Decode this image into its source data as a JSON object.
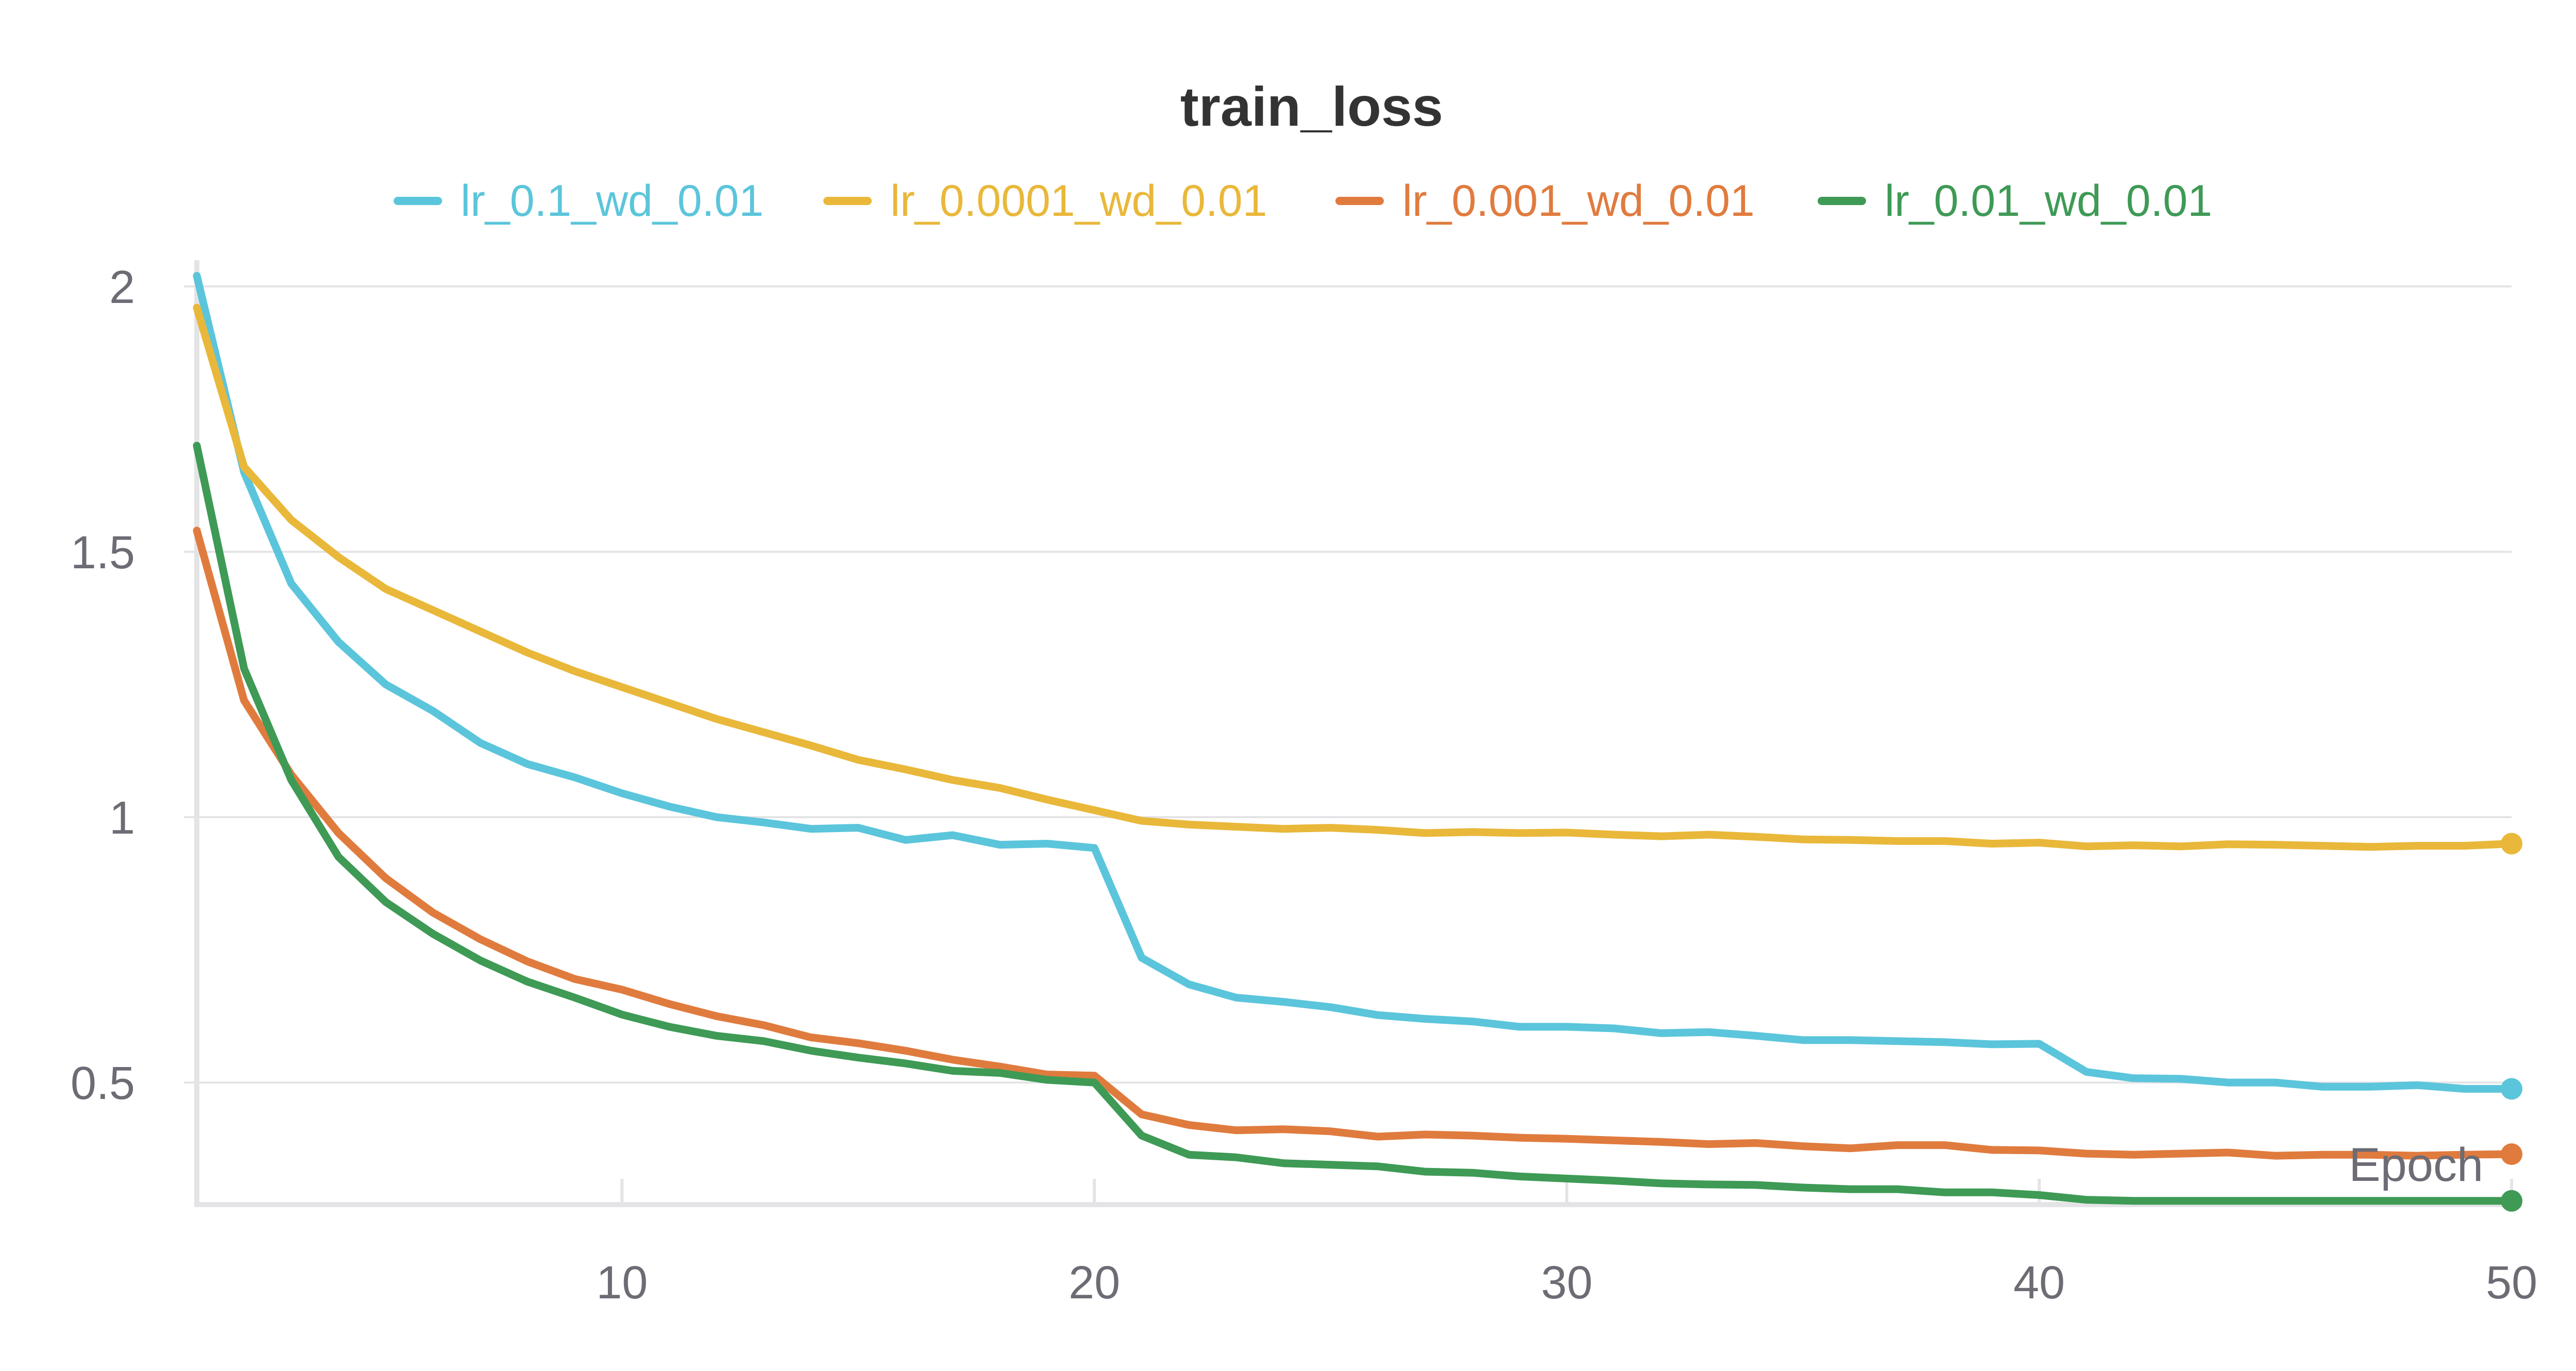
{
  "chart_data": {
    "type": "line",
    "title": "train_loss",
    "xlabel": "Epoch",
    "ylabel": "",
    "xlim": [
      1,
      50
    ],
    "ylim": [
      0.27,
      2.03
    ],
    "x_ticks": [
      10,
      20,
      30,
      40,
      50
    ],
    "y_ticks": [
      0.5,
      1,
      1.5,
      2
    ],
    "y_tick_labels": [
      "0.5",
      "1",
      "1.5",
      "2"
    ],
    "grid": true,
    "legend_position": "top",
    "series": [
      {
        "name": "lr_0.1_wd_0.01",
        "color": "#5bc5db",
        "x": [
          1,
          2,
          3,
          4,
          5,
          6,
          7,
          8,
          9,
          10,
          11,
          12,
          13,
          14,
          15,
          16,
          17,
          18,
          19,
          20,
          21,
          22,
          23,
          24,
          25,
          26,
          27,
          28,
          29,
          30,
          31,
          32,
          33,
          34,
          35,
          36,
          37,
          38,
          39,
          40,
          41,
          42,
          43,
          44,
          45,
          46,
          47,
          48,
          49,
          50
        ],
        "values": [
          2.02,
          1.65,
          1.44,
          1.33,
          1.25,
          1.2,
          1.14,
          1.1,
          1.075,
          1.045,
          1.02,
          1.0,
          0.99,
          0.978,
          0.98,
          0.957,
          0.966,
          0.948,
          0.95,
          0.942,
          0.735,
          0.685,
          0.66,
          0.652,
          0.642,
          0.627,
          0.62,
          0.615,
          0.605,
          0.605,
          0.602,
          0.593,
          0.595,
          0.588,
          0.58,
          0.58,
          0.578,
          0.576,
          0.572,
          0.573,
          0.52,
          0.508,
          0.507,
          0.5,
          0.5,
          0.492,
          0.492,
          0.495,
          0.488,
          0.488
        ]
      },
      {
        "name": "lr_0.0001_wd_0.01",
        "color": "#e9b83a",
        "x": [
          1,
          2,
          3,
          4,
          5,
          6,
          7,
          8,
          9,
          10,
          11,
          12,
          13,
          14,
          15,
          16,
          17,
          18,
          19,
          20,
          21,
          22,
          23,
          24,
          25,
          26,
          27,
          28,
          29,
          30,
          31,
          32,
          33,
          34,
          35,
          36,
          37,
          38,
          39,
          40,
          41,
          42,
          43,
          44,
          45,
          46,
          47,
          48,
          49,
          50
        ],
        "values": [
          1.96,
          1.66,
          1.56,
          1.49,
          1.43,
          1.39,
          1.35,
          1.31,
          1.275,
          1.245,
          1.215,
          1.185,
          1.16,
          1.135,
          1.108,
          1.09,
          1.07,
          1.055,
          1.033,
          1.013,
          0.993,
          0.986,
          0.982,
          0.978,
          0.98,
          0.976,
          0.97,
          0.972,
          0.97,
          0.971,
          0.967,
          0.964,
          0.967,
          0.963,
          0.958,
          0.957,
          0.955,
          0.955,
          0.95,
          0.952,
          0.945,
          0.947,
          0.945,
          0.949,
          0.948,
          0.946,
          0.944,
          0.946,
          0.946,
          0.95
        ]
      },
      {
        "name": "lr_0.001_wd_0.01",
        "color": "#e07b3e",
        "x": [
          1,
          2,
          3,
          4,
          5,
          6,
          7,
          8,
          9,
          10,
          11,
          12,
          13,
          14,
          15,
          16,
          17,
          18,
          19,
          20,
          21,
          22,
          23,
          24,
          25,
          26,
          27,
          28,
          29,
          30,
          31,
          32,
          33,
          34,
          35,
          36,
          37,
          38,
          39,
          40,
          41,
          42,
          43,
          44,
          45,
          46,
          47,
          48,
          49,
          50
        ],
        "values": [
          1.54,
          1.22,
          1.08,
          0.97,
          0.885,
          0.82,
          0.77,
          0.728,
          0.695,
          0.675,
          0.648,
          0.625,
          0.608,
          0.585,
          0.574,
          0.56,
          0.543,
          0.53,
          0.515,
          0.513,
          0.44,
          0.42,
          0.41,
          0.412,
          0.408,
          0.398,
          0.402,
          0.4,
          0.396,
          0.394,
          0.391,
          0.388,
          0.384,
          0.386,
          0.38,
          0.376,
          0.382,
          0.382,
          0.373,
          0.372,
          0.366,
          0.364,
          0.366,
          0.368,
          0.362,
          0.364,
          0.364,
          0.362,
          0.364,
          0.365
        ]
      },
      {
        "name": "lr_0.01_wd_0.01",
        "color": "#3e9a55",
        "x": [
          1,
          2,
          3,
          4,
          5,
          6,
          7,
          8,
          9,
          10,
          11,
          12,
          13,
          14,
          15,
          16,
          17,
          18,
          19,
          20,
          21,
          22,
          23,
          24,
          25,
          26,
          27,
          28,
          29,
          30,
          31,
          32,
          33,
          34,
          35,
          36,
          37,
          38,
          39,
          40,
          41,
          42,
          43,
          44,
          45,
          46,
          47,
          48,
          49,
          50
        ],
        "values": [
          1.7,
          1.28,
          1.07,
          0.925,
          0.84,
          0.78,
          0.73,
          0.69,
          0.66,
          0.628,
          0.605,
          0.588,
          0.578,
          0.56,
          0.547,
          0.536,
          0.522,
          0.518,
          0.505,
          0.5,
          0.4,
          0.364,
          0.359,
          0.348,
          0.345,
          0.342,
          0.332,
          0.33,
          0.323,
          0.319,
          0.315,
          0.31,
          0.308,
          0.307,
          0.302,
          0.299,
          0.299,
          0.293,
          0.293,
          0.288,
          0.279,
          0.277,
          0.277,
          0.277,
          0.277,
          0.277,
          0.277,
          0.277,
          0.277,
          0.277
        ]
      }
    ]
  }
}
